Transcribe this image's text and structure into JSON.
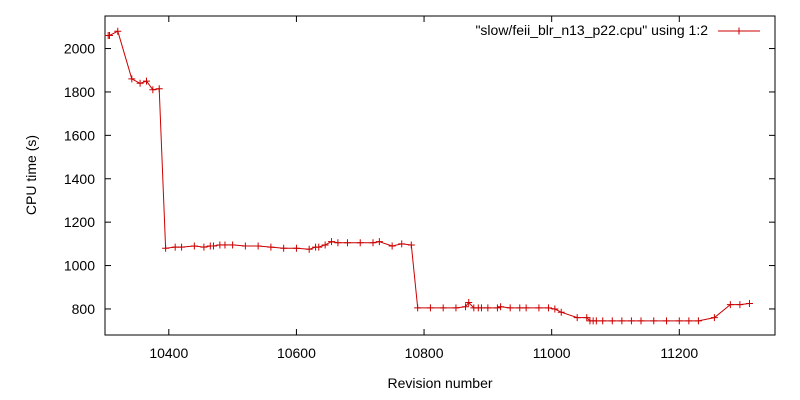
{
  "chart_data": {
    "type": "line",
    "title": "",
    "xlabel": "Revision number",
    "ylabel": "CPU time (s)",
    "xlim": [
      10300,
      11350
    ],
    "ylim": [
      680,
      2150
    ],
    "xticks": [
      10400,
      10600,
      10800,
      11000,
      11200
    ],
    "xtick_labels": [
      "10400",
      "10600",
      "10800",
      "11000",
      "11200"
    ],
    "yticks": [
      800,
      1000,
      1200,
      1400,
      1600,
      1800,
      2000
    ],
    "ytick_labels": [
      "800",
      "1000",
      "1200",
      "1400",
      "1600",
      "1800",
      "2000"
    ],
    "grid": false,
    "legend_position": "top-right",
    "colors": {
      "series": "#cc0000",
      "axis": "#000000"
    },
    "series": [
      {
        "name": "\"slow/feii_blr_n13_p22.cpu\" using 1:2",
        "x": [
          10305,
          10307,
          10320,
          10342,
          10355,
          10365,
          10375,
          10385,
          10395,
          10410,
          10420,
          10440,
          10455,
          10465,
          10470,
          10480,
          10488,
          10500,
          10520,
          10540,
          10560,
          10580,
          10600,
          10620,
          10630,
          10635,
          10645,
          10655,
          10665,
          10680,
          10700,
          10720,
          10730,
          10750,
          10765,
          10780,
          10790,
          10810,
          10830,
          10850,
          10865,
          10870,
          10878,
          10885,
          10890,
          10900,
          10915,
          10920,
          10935,
          10950,
          10960,
          10980,
          10995,
          11005,
          11015,
          11040,
          11055,
          11060,
          11065,
          11070,
          11080,
          11095,
          11110,
          11125,
          11140,
          11160,
          11180,
          11200,
          11215,
          11230,
          11255,
          11280,
          11295,
          11310
        ],
        "y": [
          2060,
          2060,
          2080,
          1860,
          1840,
          1850,
          1810,
          1815,
          1080,
          1085,
          1085,
          1090,
          1085,
          1090,
          1090,
          1095,
          1095,
          1095,
          1090,
          1090,
          1085,
          1080,
          1080,
          1075,
          1085,
          1085,
          1095,
          1110,
          1105,
          1105,
          1105,
          1105,
          1110,
          1090,
          1100,
          1095,
          805,
          805,
          805,
          805,
          810,
          830,
          805,
          805,
          805,
          805,
          805,
          810,
          805,
          805,
          805,
          805,
          805,
          800,
          785,
          760,
          760,
          745,
          745,
          745,
          745,
          745,
          745,
          745,
          745,
          745,
          745,
          745,
          745,
          745,
          760,
          820,
          820,
          825
        ]
      }
    ]
  }
}
